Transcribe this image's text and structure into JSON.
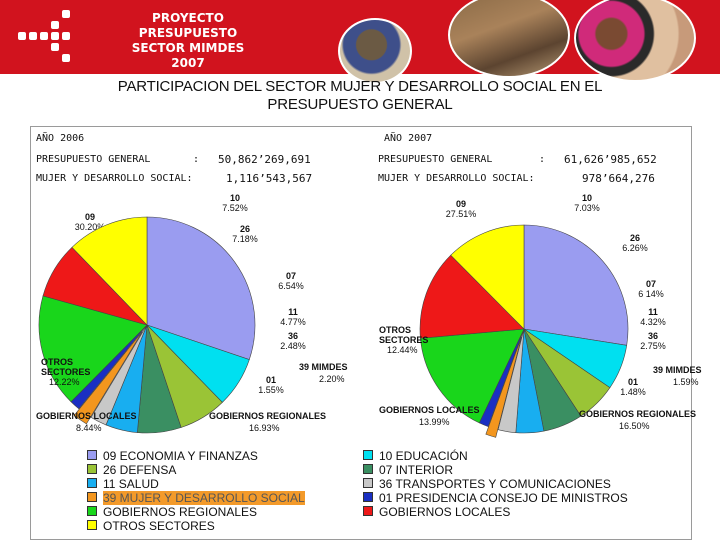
{
  "header": {
    "brand_line1": "PROYECTO",
    "brand_line2": "PRESUPUESTO",
    "brand_line3": "SECTOR  MIMDES 2007"
  },
  "title_line1": "PARTICIPACION DEL SECTOR MUJER Y DESARROLLO SOCIAL EN EL",
  "title_line2": "PRESUPUESTO GENERAL",
  "year2006": {
    "label": "AÑO 2006",
    "general_label": "PRESUPUESTO GENERAL",
    "general_colon": ":",
    "general_value": "50,862’269,691",
    "mimdes_label": "MUJER Y DESARROLLO SOCIAL:",
    "mimdes_value": "1,116’543,567"
  },
  "year2007": {
    "label": "AÑO 2007",
    "general_label": "PRESUPUESTO GENERAL",
    "general_colon": ":",
    "general_value": "61,626’985,652",
    "mimdes_label": "MUJER Y DESARROLLO SOCIAL:",
    "mimdes_value": "978’664,276"
  },
  "colors": {
    "c09": "#9a9cf0",
    "c10": "#00e0f0",
    "c26": "#9ac436",
    "c07": "#3a8f62",
    "c11": "#18aef0",
    "c36": "#c8c8c8",
    "c39": "#f3961e",
    "c01": "#1a2fc2",
    "regionales": "#19d61b",
    "locales": "#ee1818",
    "otros": "#ffff00"
  },
  "chart_data": [
    {
      "type": "pie",
      "title": "AÑO 2006",
      "slices": [
        {
          "code": "09",
          "name": "09 ECONOMIA Y FINANZAS",
          "value": 30.2,
          "pct": "30.20%",
          "color": "#9a9cf0"
        },
        {
          "code": "10",
          "name": "10 EDUCACIÓN",
          "value": 7.52,
          "pct": "7.52%",
          "color": "#00e0f0"
        },
        {
          "code": "26",
          "name": "26 DEFENSA",
          "value": 7.18,
          "pct": "7.18%",
          "color": "#9ac436"
        },
        {
          "code": "07",
          "name": "07 INTERIOR",
          "value": 6.54,
          "pct": "6.54%",
          "color": "#3a8f62"
        },
        {
          "code": "11",
          "name": "11 SALUD",
          "value": 4.77,
          "pct": "4.77%",
          "color": "#18aef0"
        },
        {
          "code": "36",
          "name": "36 TRANSPORTES Y COMUNICACIONES",
          "value": 2.48,
          "pct": "2.48%",
          "color": "#c8c8c8"
        },
        {
          "code": "39",
          "name": "39 MUJER Y DESARROLLO SOCIAL",
          "value": 2.2,
          "pct": "2.20%",
          "color": "#f3961e",
          "label": "39 MIMDES",
          "exploded": true
        },
        {
          "code": "01",
          "name": "01 PRESIDENCIA CONSEJO DE MINISTROS",
          "value": 1.55,
          "pct": "1.55%",
          "color": "#1a2fc2"
        },
        {
          "code": "GR",
          "name": "GOBIERNOS REGIONALES",
          "value": 16.93,
          "pct": "16.93%",
          "color": "#19d61b",
          "label": "GOBIERNOS REGIONALES"
        },
        {
          "code": "GL",
          "name": "GOBIERNOS LOCALES",
          "value": 8.44,
          "pct": "8.44%",
          "color": "#ee1818",
          "label": "GOBIERNOS LOCALES"
        },
        {
          "code": "OS",
          "name": "OTROS SECTORES",
          "value": 12.22,
          "pct": "12.22%",
          "color": "#ffff00",
          "label": "OTROS SECTORES"
        }
      ]
    },
    {
      "type": "pie",
      "title": "AÑO 2007",
      "slices": [
        {
          "code": "09",
          "name": "09 ECONOMIA Y FINANZAS",
          "value": 27.51,
          "pct": "27.51%",
          "color": "#9a9cf0"
        },
        {
          "code": "10",
          "name": "10 EDUCACIÓN",
          "value": 7.03,
          "pct": "7.03%",
          "color": "#00e0f0"
        },
        {
          "code": "26",
          "name": "26 DEFENSA",
          "value": 6.26,
          "pct": "6.26%",
          "color": "#9ac436"
        },
        {
          "code": "07",
          "name": "07 INTERIOR",
          "value": 6.14,
          "pct": "6 14%",
          "color": "#3a8f62"
        },
        {
          "code": "11",
          "name": "11 SALUD",
          "value": 4.32,
          "pct": "4.32%",
          "color": "#18aef0"
        },
        {
          "code": "36",
          "name": "36 TRANSPORTES Y COMUNICACIONES",
          "value": 2.75,
          "pct": "2.75%",
          "color": "#c8c8c8"
        },
        {
          "code": "39",
          "name": "39 MUJER Y DESARROLLO SOCIAL",
          "value": 1.59,
          "pct": "1.59%",
          "color": "#f3961e",
          "label": "39 MIMDES",
          "exploded": true
        },
        {
          "code": "01",
          "name": "01 PRESIDENCIA CONSEJO DE MINISTROS",
          "value": 1.48,
          "pct": "1.48%",
          "color": "#1a2fc2"
        },
        {
          "code": "GR",
          "name": "GOBIERNOS REGIONALES",
          "value": 16.5,
          "pct": "16.50%",
          "color": "#19d61b",
          "label": "GOBIERNOS REGIONALES"
        },
        {
          "code": "GL",
          "name": "GOBIERNOS LOCALES",
          "value": 13.99,
          "pct": "13.99%",
          "color": "#ee1818",
          "label": "GOBIERNOS LOCALES"
        },
        {
          "code": "OS",
          "name": "OTROS SECTORES",
          "value": 12.44,
          "pct": "12.44%",
          "color": "#ffff00",
          "label": "OTROS SECTORES"
        }
      ]
    }
  ],
  "legend": {
    "left": [
      {
        "label": "09 ECONOMIA Y FINANZAS",
        "color": "#9a9cf0"
      },
      {
        "label": "26 DEFENSA",
        "color": "#9ac436"
      },
      {
        "label": "11 SALUD",
        "color": "#18aef0"
      },
      {
        "label": "39 MUJER Y DESARROLLO SOCIAL",
        "color": "#f3961e"
      },
      {
        "label": "GOBIERNOS REGIONALES",
        "color": "#19d61b"
      },
      {
        "label": "OTROS SECTORES",
        "color": "#ffff00"
      }
    ],
    "right": [
      {
        "label": "10 EDUCACIÓN",
        "color": "#00e0f0"
      },
      {
        "label": "07 INTERIOR",
        "color": "#3a8f62"
      },
      {
        "label": "36 TRANSPORTES Y COMUNICACIONES",
        "color": "#c8c8c8"
      },
      {
        "label": "01 PRESIDENCIA CONSEJO DE MINISTROS",
        "color": "#1a2fc2"
      },
      {
        "label": "GOBIERNOS LOCALES",
        "color": "#ee1818"
      }
    ]
  }
}
